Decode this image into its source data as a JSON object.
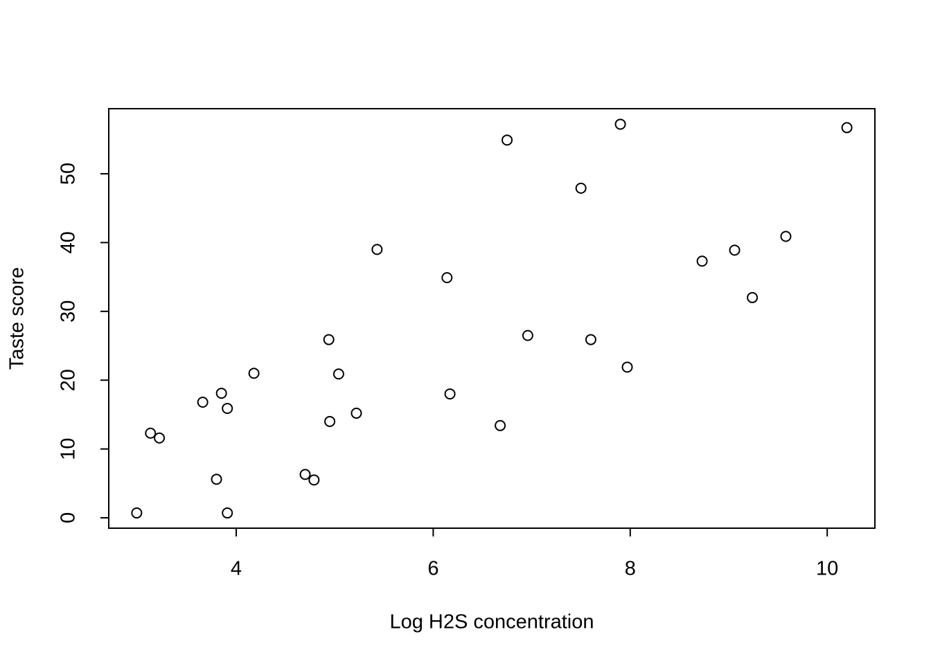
{
  "chart_data": {
    "type": "scatter",
    "x_label": "Log H2S concentration",
    "y_label": "Taste score",
    "x": [
      2.99,
      3.13,
      3.22,
      3.66,
      3.8,
      3.85,
      3.91,
      3.91,
      4.18,
      4.7,
      4.79,
      4.94,
      4.95,
      5.04,
      5.22,
      5.43,
      6.14,
      6.17,
      6.68,
      6.75,
      6.96,
      7.5,
      7.6,
      7.9,
      7.97,
      8.73,
      9.06,
      9.24,
      9.58,
      10.2
    ],
    "values": [
      0.7,
      12.3,
      11.6,
      16.8,
      5.6,
      18.1,
      15.9,
      0.7,
      21.0,
      6.3,
      5.5,
      25.9,
      14.0,
      20.9,
      15.2,
      39.0,
      34.9,
      18.0,
      13.4,
      54.9,
      26.5,
      47.9,
      25.9,
      57.2,
      21.9,
      37.3,
      38.9,
      32.0,
      40.9,
      56.7
    ],
    "color": "#000000",
    "xlim": [
      2.706,
      10.484
    ],
    "xticks": [
      4,
      6,
      8,
      10
    ],
    "ylim": [
      -1.51,
      59.46
    ],
    "yticks": [
      0,
      10,
      20,
      30,
      40,
      50
    ],
    "grid": false
  }
}
